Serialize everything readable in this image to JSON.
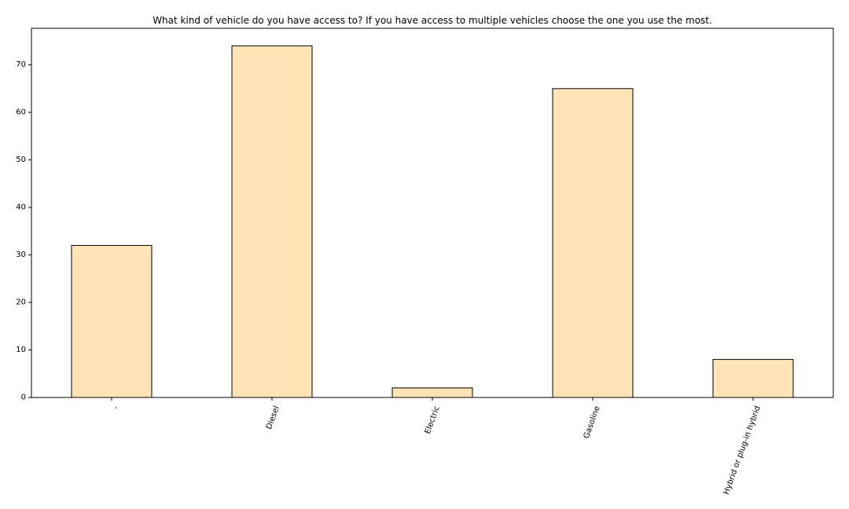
{
  "chart_data": {
    "type": "bar",
    "title": "What kind of vehicle do you have access to? If you have access to multiple vehicles choose the one you use the most.",
    "xlabel": "",
    "ylabel": "",
    "categories": [
      "-",
      "Diesel",
      "Electric",
      "Gasoline",
      "Hybrid or plug-in hybrid"
    ],
    "values": [
      32,
      74,
      2,
      65,
      8
    ],
    "ylim": [
      0,
      77.7
    ],
    "yticks": [
      0,
      10,
      20,
      30,
      40,
      50,
      60,
      70
    ],
    "grid": false,
    "legend": "none",
    "colors": {
      "bar_fill": "#ffe4b5",
      "bar_stroke": "#000000",
      "axis": "#000000"
    }
  }
}
